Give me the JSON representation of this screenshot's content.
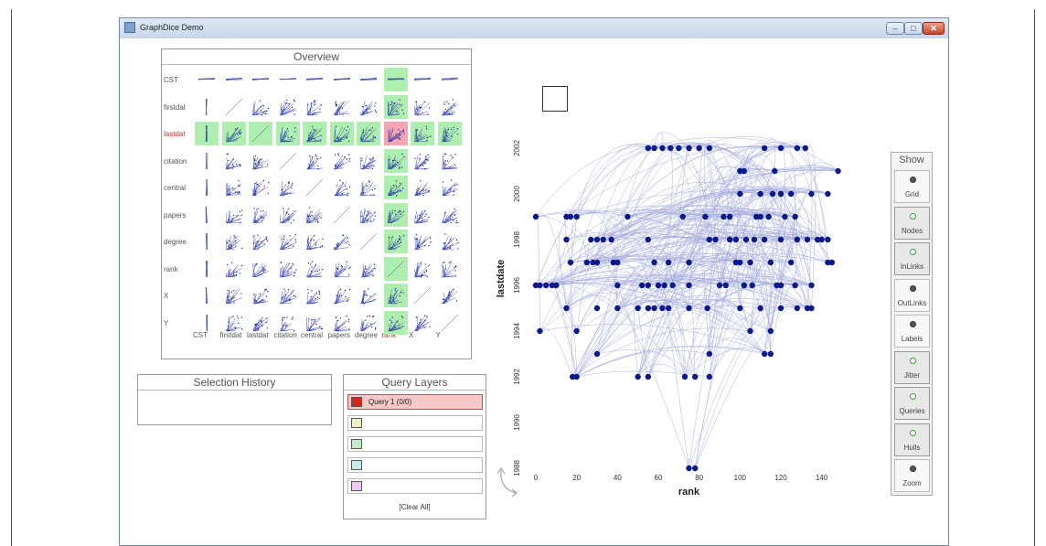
{
  "window": {
    "title": "GraphDice Demo",
    "controls": {
      "minimize": "–",
      "maximize": "□",
      "close": "✕"
    }
  },
  "overview": {
    "title": "Overview",
    "rows": [
      "CST",
      "firstdat",
      "lastdat",
      "citation",
      "central",
      "papers",
      "degree",
      "rank",
      "X",
      "Y"
    ],
    "cols": [
      "CST",
      "firstdat",
      "lastdat",
      "citation",
      "central",
      "papers",
      "degree",
      "rank",
      "X",
      "Y"
    ],
    "active_row": "lastdat",
    "active_col": "rank"
  },
  "selection_history": {
    "title": "Selection History"
  },
  "query_layers": {
    "title": "Query Layers",
    "items": [
      {
        "label": "Query 1 (0/0)",
        "color": "#e02020"
      },
      {
        "label": "",
        "color": "#f2efc6"
      },
      {
        "label": "",
        "color": "#c5ecc5"
      },
      {
        "label": "",
        "color": "#c8ecec"
      },
      {
        "label": "",
        "color": "#eec8ee"
      }
    ],
    "clear_label": "[Clear All]"
  },
  "chart_data": {
    "type": "scatter",
    "xlabel": "rank",
    "ylabel": "lastdate",
    "x_ticks": [
      0,
      20,
      40,
      60,
      80,
      100,
      120,
      140
    ],
    "y_ticks": [
      1988,
      1990,
      1992,
      1994,
      1996,
      1998,
      2000,
      2002
    ],
    "xlim": [
      0,
      150
    ],
    "ylim": [
      1988,
      2003
    ],
    "grid": false,
    "node_color": "#0a1a8c",
    "edge_color": "#3a4ab0",
    "points": [
      [
        55,
        2002
      ],
      [
        58,
        2002
      ],
      [
        62,
        2002
      ],
      [
        66,
        2002
      ],
      [
        70,
        2002
      ],
      [
        75,
        2002
      ],
      [
        80,
        2002
      ],
      [
        85,
        2002
      ],
      [
        112,
        2002
      ],
      [
        120,
        2002
      ],
      [
        128,
        2002
      ],
      [
        132,
        2002
      ],
      [
        100,
        2001
      ],
      [
        102,
        2001
      ],
      [
        117,
        2001
      ],
      [
        148,
        2001
      ],
      [
        0,
        1999
      ],
      [
        15,
        1999
      ],
      [
        17,
        1999
      ],
      [
        20,
        1999
      ],
      [
        45,
        1999
      ],
      [
        72,
        1999
      ],
      [
        83,
        1999
      ],
      [
        92,
        1999
      ],
      [
        95,
        1999
      ],
      [
        108,
        1999
      ],
      [
        110,
        1999
      ],
      [
        114,
        1999
      ],
      [
        122,
        1999
      ],
      [
        127,
        1999
      ],
      [
        100,
        2000
      ],
      [
        110,
        2000
      ],
      [
        116,
        2000
      ],
      [
        120,
        2000
      ],
      [
        125,
        2000
      ],
      [
        135,
        2000
      ],
      [
        143,
        2000
      ],
      [
        15,
        1998
      ],
      [
        27,
        1998
      ],
      [
        30,
        1998
      ],
      [
        33,
        1998
      ],
      [
        37,
        1998
      ],
      [
        55,
        1998
      ],
      [
        85,
        1998
      ],
      [
        88,
        1998
      ],
      [
        95,
        1998
      ],
      [
        98,
        1998
      ],
      [
        103,
        1998
      ],
      [
        107,
        1998
      ],
      [
        112,
        1998
      ],
      [
        120,
        1998
      ],
      [
        128,
        1998
      ],
      [
        133,
        1998
      ],
      [
        138,
        1998
      ],
      [
        140,
        1998
      ],
      [
        143,
        1998
      ],
      [
        17,
        1997
      ],
      [
        25,
        1997
      ],
      [
        28,
        1997
      ],
      [
        30,
        1997
      ],
      [
        38,
        1997
      ],
      [
        40,
        1997
      ],
      [
        58,
        1997
      ],
      [
        65,
        1997
      ],
      [
        75,
        1997
      ],
      [
        98,
        1997
      ],
      [
        100,
        1997
      ],
      [
        105,
        1997
      ],
      [
        115,
        1997
      ],
      [
        125,
        1997
      ],
      [
        143,
        1997
      ],
      [
        145,
        1997
      ],
      [
        0,
        1996
      ],
      [
        2,
        1996
      ],
      [
        5,
        1996
      ],
      [
        8,
        1996
      ],
      [
        10,
        1996
      ],
      [
        40,
        1996
      ],
      [
        52,
        1996
      ],
      [
        55,
        1996
      ],
      [
        60,
        1996
      ],
      [
        63,
        1996
      ],
      [
        67,
        1996
      ],
      [
        75,
        1996
      ],
      [
        90,
        1996
      ],
      [
        93,
        1996
      ],
      [
        102,
        1996
      ],
      [
        106,
        1996
      ],
      [
        118,
        1996
      ],
      [
        120,
        1996
      ],
      [
        127,
        1996
      ],
      [
        135,
        1996
      ],
      [
        15,
        1995
      ],
      [
        30,
        1995
      ],
      [
        40,
        1995
      ],
      [
        50,
        1995
      ],
      [
        55,
        1995
      ],
      [
        58,
        1995
      ],
      [
        62,
        1995
      ],
      [
        65,
        1995
      ],
      [
        75,
        1995
      ],
      [
        84,
        1995
      ],
      [
        100,
        1995
      ],
      [
        110,
        1995
      ],
      [
        120,
        1995
      ],
      [
        128,
        1995
      ],
      [
        133,
        1995
      ],
      [
        135,
        1995
      ],
      [
        2,
        1994
      ],
      [
        20,
        1994
      ],
      [
        105,
        1994
      ],
      [
        115,
        1994
      ],
      [
        30,
        1993
      ],
      [
        85,
        1993
      ],
      [
        112,
        1993
      ],
      [
        115,
        1993
      ],
      [
        18,
        1992
      ],
      [
        20,
        1992
      ],
      [
        50,
        1992
      ],
      [
        55,
        1992
      ],
      [
        73,
        1992
      ],
      [
        78,
        1992
      ],
      [
        85,
        1992
      ],
      [
        75,
        1988
      ],
      [
        78,
        1988
      ]
    ]
  },
  "show_panel": {
    "title": "Show",
    "buttons": [
      {
        "label": "Grid",
        "state": "off"
      },
      {
        "label": "Nodes",
        "state": "on"
      },
      {
        "label": "InLinks",
        "state": "on"
      },
      {
        "label": "OutLinks",
        "state": "off"
      },
      {
        "label": "Labels",
        "state": "off"
      },
      {
        "label": "Jitter",
        "state": "on"
      },
      {
        "label": "Queries",
        "state": "on"
      },
      {
        "label": "Hulls",
        "state": "on"
      },
      {
        "label": "Zoom",
        "state": "off"
      }
    ]
  }
}
